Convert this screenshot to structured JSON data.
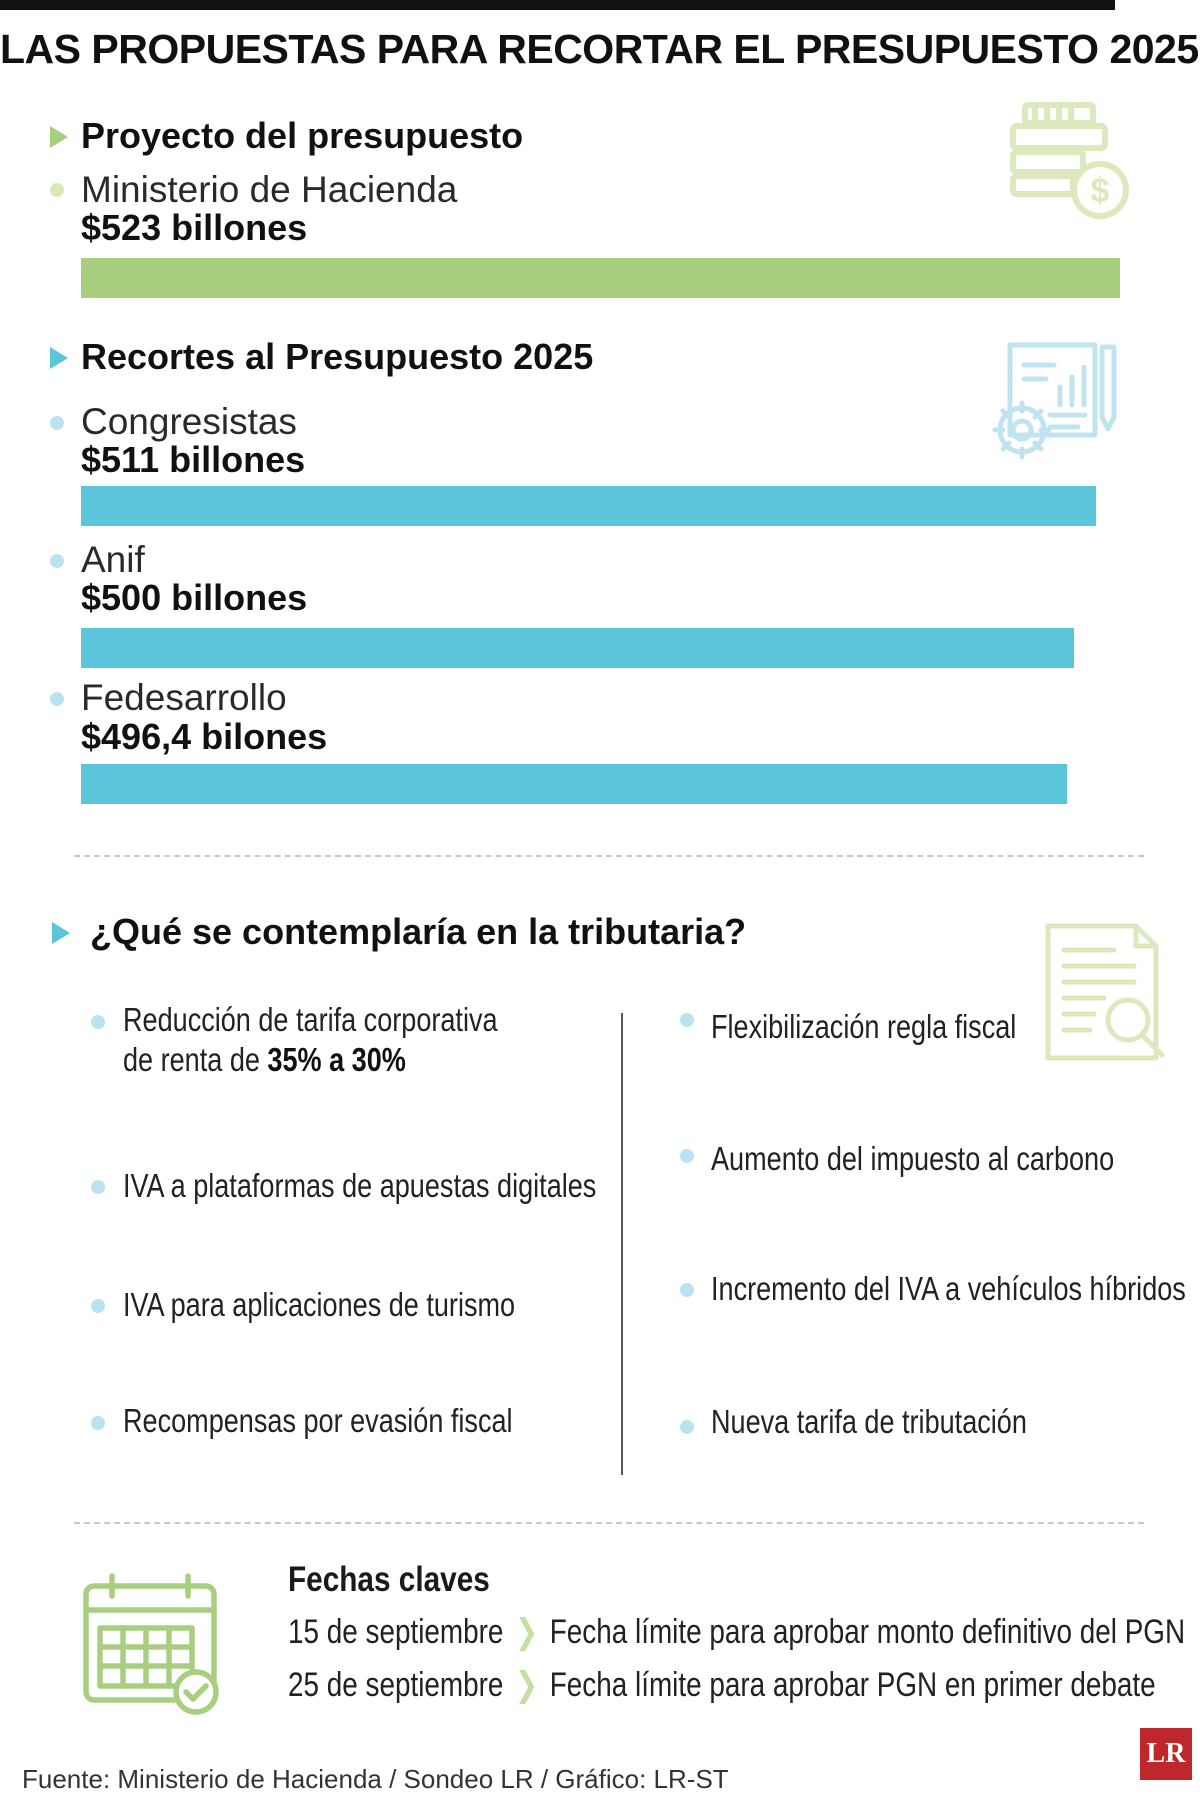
{
  "title": "LAS PROPUESTAS PARA RECORTAR EL PRESUPUESTO 2025",
  "section1": {
    "heading": "Proyecto del presupuesto",
    "source": "Ministerio de Hacienda",
    "value_label": "$523 billones"
  },
  "section2": {
    "heading": "Recortes al Presupuesto 2025",
    "items": [
      {
        "source": "Congresistas",
        "value_label": "$511 billones"
      },
      {
        "source": "Anif",
        "value_label": "$500 billones"
      },
      {
        "source": "Fedesarrollo",
        "value_label": "$496,4 bilones"
      }
    ]
  },
  "chart_data": {
    "type": "bar",
    "orientation": "horizontal",
    "title": "LAS PROPUESTAS PARA RECORTAR EL PRESUPUESTO 2025",
    "unit": "billones de pesos",
    "categories": [
      "Ministerio de Hacienda",
      "Congresistas",
      "Anif",
      "Fedesarrollo"
    ],
    "values": [
      523,
      511,
      500,
      496.4
    ],
    "colors": [
      "#a8cf80",
      "#5bc5dc",
      "#5bc5dc",
      "#5bc5dc"
    ],
    "xlim": [
      0,
      523
    ]
  },
  "tax": {
    "heading": "¿Qué se contemplaría en la tributaria?",
    "left": [
      {
        "line1": "Reducción de tarifa corporativa",
        "line2_prefix": "de renta de ",
        "line2_bold": "35% a 30%"
      },
      {
        "text": "IVA a plataformas de apuestas digitales"
      },
      {
        "text": "IVA para aplicaciones de turismo"
      },
      {
        "text": "Recompensas por evasión fiscal"
      }
    ],
    "right": [
      {
        "text": "Flexibilización regla fiscal"
      },
      {
        "text": "Aumento del impuesto al carbono"
      },
      {
        "text": "Incremento del IVA a vehículos híbridos"
      },
      {
        "text": "Nueva tarifa de tributación"
      }
    ]
  },
  "dates": {
    "title": "Fechas claves",
    "rows": [
      {
        "date": "15 de septiembre",
        "desc": "Fecha límite para aprobar monto definitivo del PGN"
      },
      {
        "date": "25 de septiembre",
        "desc": "Fecha límite para aprobar PGN en primer debate"
      }
    ]
  },
  "source": "Fuente: Ministerio de Hacienda / Sondeo LR / Gráfico: LR-ST",
  "logo": "LR",
  "colors": {
    "green": "#a8cf80",
    "blue": "#5bc5dc",
    "icon_green": "#dce9bd",
    "icon_blue": "#bfe4ef"
  }
}
